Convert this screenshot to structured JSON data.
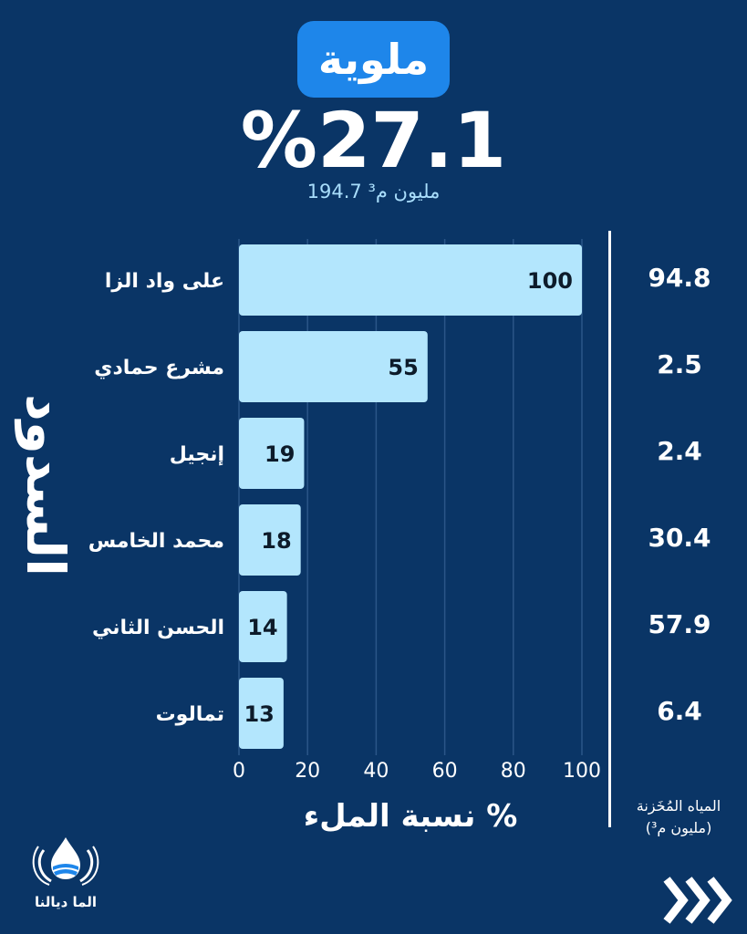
{
  "header": {
    "basin": "ملوية",
    "fill_rate": "%27.1",
    "volume": "194.7 مليون م³"
  },
  "chart_data": {
    "type": "bar",
    "orientation": "horizontal",
    "categories": [
      "على واد الزا",
      "مشرع حمادي",
      "إنجيل",
      "محمد الخامس",
      "الحسن الثاني",
      "تمالوت"
    ],
    "values": [
      100,
      55,
      19,
      18,
      14,
      13
    ],
    "value_labels": [
      "100",
      "55",
      "19",
      "18",
      "14",
      "13"
    ],
    "xlim": [
      0,
      100
    ],
    "x_ticks": [
      "0",
      "20",
      "40",
      "60",
      "80",
      "100"
    ],
    "xlabel": "نسبة الملء %",
    "ylabel": "السدود",
    "grid": true,
    "bar_color": "#b3e6fd"
  },
  "storage": {
    "values": [
      "94.8",
      "2.5",
      "2.4",
      "30.4",
      "57.9",
      "6.4"
    ],
    "caption_line1": "المياه المُخَزنة",
    "caption_line2": "(مليون م³)"
  },
  "brand": {
    "name": "الما ديالنا",
    "logo_icon": "water-drop-hands-icon"
  },
  "nav": {
    "next_icon": "triple-chevron-right-icon"
  },
  "colors": {
    "background": "#0a3566",
    "title_pill": "#1e86ea",
    "bar": "#b3e6fd",
    "volume_text": "#a9defc"
  }
}
